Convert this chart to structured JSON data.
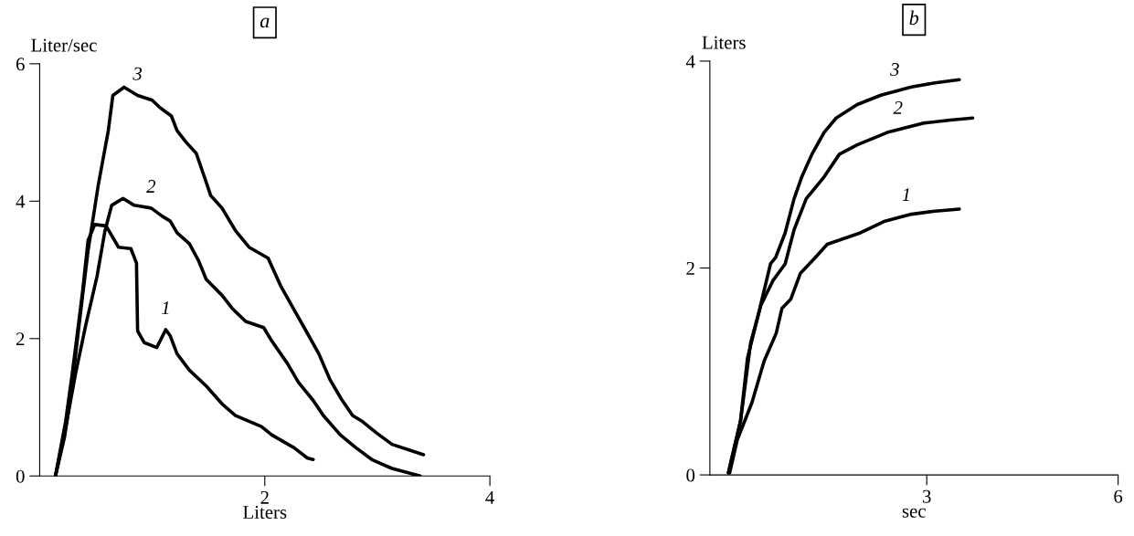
{
  "chart_data": [
    {
      "type": "line",
      "title": "a",
      "xlabel": "Liters",
      "ylabel": "Liter/sec",
      "xlim": [
        0,
        4
      ],
      "xticks": [
        2,
        4
      ],
      "ylim": [
        0,
        6
      ],
      "yticks": [
        0,
        2,
        4,
        6
      ],
      "grid": false,
      "legend": false,
      "marker": "none",
      "line_style": "solid",
      "annotations": [
        {
          "text": "1",
          "x": 1.12,
          "y": 2.13
        },
        {
          "text": "2",
          "x": 0.99,
          "y": 3.9
        },
        {
          "text": "3",
          "x": 0.87,
          "y": 5.54
        }
      ],
      "series": [
        {
          "color": "#000000",
          "x": [
            0.14,
            0.23,
            0.29,
            0.38,
            0.43,
            0.49,
            0.59,
            0.65,
            0.7,
            0.81,
            0.86,
            0.87,
            0.93,
            1.04,
            1.12,
            1.16,
            1.22,
            1.33,
            1.48,
            1.62,
            1.74,
            1.97,
            2.06,
            2.26,
            2.38,
            2.43
          ],
          "values": [
            0,
            0.79,
            1.5,
            2.67,
            3.43,
            3.66,
            3.64,
            3.47,
            3.33,
            3.31,
            3.1,
            2.11,
            1.94,
            1.87,
            2.13,
            2.04,
            1.78,
            1.54,
            1.31,
            1.05,
            0.88,
            0.72,
            0.6,
            0.41,
            0.26,
            0.24
          ]
        },
        {
          "color": "#000000",
          "x": [
            0.14,
            0.23,
            0.32,
            0.41,
            0.51,
            0.58,
            0.64,
            0.74,
            0.84,
            0.99,
            1.09,
            1.16,
            1.22,
            1.33,
            1.41,
            1.48,
            1.62,
            1.71,
            1.83,
            1.99,
            2.06,
            2.2,
            2.3,
            2.43,
            2.52,
            2.67,
            2.81,
            2.96,
            3.13,
            3.38
          ],
          "values": [
            0,
            0.7,
            1.5,
            2.2,
            2.91,
            3.57,
            3.94,
            4.04,
            3.94,
            3.9,
            3.78,
            3.71,
            3.54,
            3.38,
            3.14,
            2.86,
            2.63,
            2.44,
            2.25,
            2.16,
            1.97,
            1.64,
            1.36,
            1.1,
            0.88,
            0.6,
            0.41,
            0.23,
            0.11,
            0
          ]
        },
        {
          "color": "#000000",
          "x": [
            0.14,
            0.22,
            0.28,
            0.35,
            0.43,
            0.52,
            0.61,
            0.65,
            0.75,
            0.87,
            1.0,
            1.07,
            1.17,
            1.22,
            1.3,
            1.39,
            1.46,
            1.52,
            1.62,
            1.74,
            1.86,
            2.03,
            2.14,
            2.27,
            2.35,
            2.48,
            2.58,
            2.68,
            2.78,
            2.87,
            2.99,
            3.13,
            3.3,
            3.41
          ],
          "values": [
            0,
            0.56,
            1.21,
            2.2,
            3.28,
            4.23,
            5.03,
            5.54,
            5.66,
            5.54,
            5.47,
            5.36,
            5.24,
            5.03,
            4.86,
            4.7,
            4.37,
            4.08,
            3.9,
            3.57,
            3.33,
            3.17,
            2.77,
            2.39,
            2.16,
            1.78,
            1.4,
            1.12,
            0.88,
            0.79,
            0.63,
            0.46,
            0.37,
            0.31
          ]
        }
      ]
    },
    {
      "type": "line",
      "title": "b",
      "xlabel": "sec",
      "ylabel": "Liters",
      "xlim": [
        -0.4,
        6
      ],
      "xticks": [
        3,
        6
      ],
      "ylim": [
        0,
        4
      ],
      "yticks": [
        0,
        2,
        4
      ],
      "grid": false,
      "legend": false,
      "marker": "none",
      "line_style": "solid",
      "annotations": [
        {
          "text": "1",
          "x": 2.68,
          "y": 2.5
        },
        {
          "text": "2",
          "x": 2.55,
          "y": 3.34
        },
        {
          "text": "3",
          "x": 2.5,
          "y": 3.71
        }
      ],
      "series": [
        {
          "color": "#000000",
          "x": [
            -0.09,
            0.03,
            0.26,
            0.45,
            0.64,
            0.73,
            0.87,
            1.02,
            1.25,
            1.44,
            1.96,
            2.33,
            2.76,
            3.13,
            3.51
          ],
          "values": [
            0.02,
            0.34,
            0.7,
            1.1,
            1.37,
            1.61,
            1.7,
            1.95,
            2.1,
            2.23,
            2.34,
            2.45,
            2.52,
            2.55,
            2.57
          ]
        },
        {
          "color": "#000000",
          "x": [
            -0.11,
            0.08,
            0.24,
            0.4,
            0.59,
            0.78,
            0.92,
            1.11,
            1.39,
            1.63,
            1.91,
            2.38,
            2.94,
            3.37,
            3.72
          ],
          "values": [
            0.02,
            0.52,
            1.28,
            1.64,
            1.88,
            2.04,
            2.37,
            2.67,
            2.88,
            3.1,
            3.19,
            3.31,
            3.4,
            3.43,
            3.45
          ]
        },
        {
          "color": "#000000",
          "x": [
            -0.11,
            0.08,
            0.19,
            0.36,
            0.55,
            0.63,
            0.78,
            0.92,
            1.04,
            1.2,
            1.39,
            1.58,
            1.91,
            2.28,
            2.76,
            3.13,
            3.51
          ],
          "values": [
            0.02,
            0.52,
            1.13,
            1.55,
            2.04,
            2.1,
            2.34,
            2.67,
            2.88,
            3.1,
            3.31,
            3.45,
            3.58,
            3.67,
            3.75,
            3.79,
            3.82
          ]
        }
      ]
    }
  ]
}
